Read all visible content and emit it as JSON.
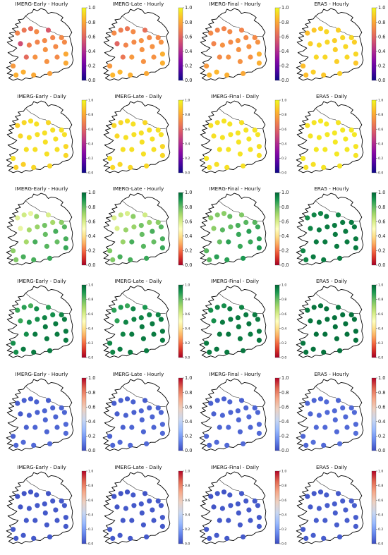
{
  "colormaps": {
    "plasma": [
      "#0d0887",
      "#5302a3",
      "#8b0aa5",
      "#b83289",
      "#db5c68",
      "#f48849",
      "#febd2a",
      "#f0f921"
    ],
    "red_yellow_green": [
      "#a50026",
      "#d73027",
      "#f46d43",
      "#fdae61",
      "#fee08b",
      "#ffffbf",
      "#d9ef8b",
      "#a6d96a",
      "#66bd63",
      "#1a9850",
      "#006837"
    ],
    "coolwarm": [
      "#3b4cc0",
      "#6788ee",
      "#9abbff",
      "#c9d7f0",
      "#edd1c2",
      "#f7a889",
      "#e26952",
      "#b40426"
    ]
  },
  "colorbar_ticks_large": [
    "0.0",
    "0.2",
    "0.4",
    "0.6",
    "0.8",
    "1.0"
  ],
  "colorbar_ticks_small": [
    "0.0",
    "0.2",
    "0.4",
    "0.6",
    "0.8",
    "1.0"
  ],
  "rows": [
    {
      "colormap": "plasma",
      "tick_style": "large",
      "panels": [
        {
          "title": "IMERG-Early - Hourly",
          "values": [
            0.7,
            0.66,
            0.62,
            0.72,
            0.52,
            0.68,
            0.7,
            0.72,
            0.7,
            0.56,
            0.72,
            0.74,
            0.72,
            0.72,
            0.62,
            0.74,
            0.74,
            0.72,
            0.76,
            0.82,
            0.8,
            0.78,
            0.82,
            0.8,
            0.8
          ]
        },
        {
          "title": "IMERG-Late - Hourly",
          "values": [
            0.72,
            0.68,
            0.66,
            0.72,
            0.6,
            0.7,
            0.72,
            0.74,
            0.72,
            0.64,
            0.72,
            0.74,
            0.74,
            0.74,
            0.66,
            0.76,
            0.74,
            0.74,
            0.76,
            0.84,
            0.82,
            0.8,
            0.84,
            0.82,
            0.82
          ]
        },
        {
          "title": "IMERG-Final - Hourly",
          "values": [
            0.72,
            0.7,
            0.7,
            0.72,
            0.7,
            0.74,
            0.72,
            0.74,
            0.72,
            0.7,
            0.72,
            0.74,
            0.74,
            0.74,
            0.72,
            0.74,
            0.74,
            0.74,
            0.76,
            0.84,
            0.82,
            0.8,
            0.84,
            0.82,
            0.82
          ]
        },
        {
          "title": "ERA5 - Hourly",
          "values": [
            0.86,
            0.88,
            0.9,
            0.92,
            0.9,
            0.92,
            0.92,
            0.9,
            0.92,
            0.9,
            0.92,
            0.9,
            0.92,
            0.9,
            0.92,
            0.92,
            0.9,
            0.92,
            0.86,
            0.9,
            0.88,
            0.9,
            0.86,
            0.92,
            0.88
          ]
        }
      ]
    },
    {
      "colormap": "plasma",
      "tick_style": "small",
      "panels": [
        {
          "title": "IMERG-Early - Daily",
          "values": [
            0.9,
            0.92,
            0.94,
            0.94,
            0.92,
            0.94,
            0.94,
            0.94,
            0.94,
            0.92,
            0.94,
            0.94,
            0.94,
            0.94,
            0.94,
            0.94,
            0.94,
            0.94,
            0.94,
            0.9,
            0.92,
            0.92,
            0.9,
            0.92,
            0.92
          ]
        },
        {
          "title": "IMERG-Late - Daily",
          "values": [
            0.92,
            0.92,
            0.94,
            0.94,
            0.92,
            0.94,
            0.94,
            0.94,
            0.94,
            0.92,
            0.94,
            0.94,
            0.94,
            0.94,
            0.94,
            0.94,
            0.94,
            0.94,
            0.94,
            0.92,
            0.92,
            0.92,
            0.92,
            0.92,
            0.92
          ]
        },
        {
          "title": "IMERG-Final - Daily",
          "values": [
            0.94,
            0.94,
            0.95,
            0.95,
            0.94,
            0.95,
            0.95,
            0.95,
            0.95,
            0.94,
            0.95,
            0.95,
            0.95,
            0.95,
            0.95,
            0.95,
            0.95,
            0.95,
            0.95,
            0.94,
            0.94,
            0.94,
            0.94,
            0.94,
            0.94
          ]
        },
        {
          "title": "ERA5 - Daily",
          "values": [
            0.94,
            0.95,
            0.96,
            0.96,
            0.95,
            0.96,
            0.96,
            0.96,
            0.96,
            0.95,
            0.96,
            0.96,
            0.96,
            0.96,
            0.96,
            0.96,
            0.96,
            0.96,
            0.96,
            0.94,
            0.95,
            0.95,
            0.94,
            0.95,
            0.95
          ]
        }
      ]
    },
    {
      "colormap": "red_yellow_green",
      "tick_style": "large",
      "panels": [
        {
          "title": "IMERG-Early - Hourly",
          "values": [
            0.58,
            0.62,
            0.56,
            0.72,
            0.56,
            0.7,
            0.72,
            0.78,
            0.7,
            0.6,
            0.74,
            0.8,
            0.84,
            0.82,
            0.7,
            0.84,
            0.82,
            0.8,
            0.74,
            0.84,
            0.84,
            0.86,
            0.76,
            0.84,
            0.86
          ]
        },
        {
          "title": "IMERG-Late - Hourly",
          "values": [
            0.6,
            0.64,
            0.6,
            0.74,
            0.6,
            0.72,
            0.72,
            0.78,
            0.72,
            0.62,
            0.74,
            0.8,
            0.84,
            0.82,
            0.72,
            0.84,
            0.82,
            0.8,
            0.76,
            0.84,
            0.84,
            0.86,
            0.76,
            0.84,
            0.86
          ]
        },
        {
          "title": "IMERG-Final - Hourly",
          "values": [
            0.74,
            0.76,
            0.74,
            0.8,
            0.74,
            0.82,
            0.8,
            0.84,
            0.82,
            0.76,
            0.82,
            0.86,
            0.88,
            0.86,
            0.8,
            0.88,
            0.86,
            0.86,
            0.82,
            0.88,
            0.88,
            0.9,
            0.82,
            0.88,
            0.9
          ]
        },
        {
          "title": "ERA5 - Hourly",
          "values": [
            0.92,
            0.94,
            0.94,
            0.96,
            0.94,
            0.96,
            0.96,
            0.96,
            0.96,
            0.94,
            0.96,
            0.96,
            0.96,
            0.96,
            0.96,
            0.96,
            0.96,
            0.96,
            0.94,
            0.96,
            0.96,
            0.96,
            0.94,
            0.96,
            0.96
          ]
        }
      ]
    },
    {
      "colormap": "red_yellow_green",
      "tick_style": "small",
      "panels": [
        {
          "title": "IMERG-Early - Daily",
          "values": [
            0.86,
            0.88,
            0.84,
            0.92,
            0.86,
            0.92,
            0.92,
            0.94,
            0.92,
            0.88,
            0.94,
            0.96,
            0.96,
            0.96,
            0.92,
            0.96,
            0.96,
            0.96,
            0.92,
            0.96,
            0.96,
            0.96,
            0.92,
            0.96,
            0.96
          ]
        },
        {
          "title": "IMERG-Late - Daily",
          "values": [
            0.88,
            0.9,
            0.86,
            0.94,
            0.88,
            0.94,
            0.94,
            0.94,
            0.94,
            0.9,
            0.94,
            0.96,
            0.96,
            0.96,
            0.94,
            0.96,
            0.96,
            0.96,
            0.94,
            0.96,
            0.96,
            0.96,
            0.94,
            0.96,
            0.96
          ]
        },
        {
          "title": "IMERG-Final - Daily",
          "values": [
            0.92,
            0.94,
            0.92,
            0.96,
            0.92,
            0.96,
            0.96,
            0.96,
            0.96,
            0.94,
            0.96,
            0.96,
            0.97,
            0.96,
            0.96,
            0.97,
            0.96,
            0.96,
            0.96,
            0.97,
            0.96,
            0.97,
            0.96,
            0.96,
            0.97
          ]
        },
        {
          "title": "ERA5 - Daily",
          "values": [
            0.96,
            0.97,
            0.97,
            0.98,
            0.97,
            0.98,
            0.98,
            0.98,
            0.98,
            0.97,
            0.98,
            0.98,
            0.98,
            0.98,
            0.98,
            0.98,
            0.98,
            0.98,
            0.97,
            0.98,
            0.98,
            0.98,
            0.97,
            0.98,
            0.98
          ]
        }
      ]
    },
    {
      "colormap": "coolwarm",
      "tick_style": "large",
      "panels": [
        {
          "title": "IMERG-Early - Hourly",
          "values": [
            0.04,
            0.05,
            0.04,
            0.05,
            0.03,
            0.05,
            0.05,
            0.06,
            0.05,
            0.04,
            0.06,
            0.06,
            0.06,
            0.06,
            0.05,
            0.06,
            0.06,
            0.06,
            0.05,
            0.07,
            0.07,
            0.07,
            0.06,
            0.07,
            0.07
          ]
        },
        {
          "title": "IMERG-Late - Hourly",
          "values": [
            0.04,
            0.05,
            0.04,
            0.05,
            0.04,
            0.05,
            0.05,
            0.06,
            0.05,
            0.04,
            0.06,
            0.06,
            0.06,
            0.06,
            0.05,
            0.06,
            0.06,
            0.06,
            0.05,
            0.07,
            0.07,
            0.07,
            0.06,
            0.07,
            0.07
          ]
        },
        {
          "title": "IMERG-Final - Hourly",
          "values": [
            0.05,
            0.05,
            0.05,
            0.06,
            0.05,
            0.06,
            0.06,
            0.06,
            0.06,
            0.05,
            0.06,
            0.06,
            0.07,
            0.06,
            0.06,
            0.07,
            0.06,
            0.06,
            0.06,
            0.07,
            0.07,
            0.07,
            0.06,
            0.07,
            0.07
          ]
        },
        {
          "title": "ERA5 - Hourly",
          "values": [
            0.06,
            0.06,
            0.06,
            0.07,
            0.06,
            0.07,
            0.07,
            0.07,
            0.07,
            0.06,
            0.07,
            0.07,
            0.07,
            0.07,
            0.07,
            0.07,
            0.07,
            0.07,
            0.06,
            0.08,
            0.07,
            0.08,
            0.06,
            0.07,
            0.08
          ]
        }
      ]
    },
    {
      "colormap": "coolwarm",
      "tick_style": "small",
      "panels": [
        {
          "title": "IMERG-Early - Daily",
          "values": [
            0.02,
            0.02,
            0.02,
            0.03,
            0.02,
            0.03,
            0.03,
            0.03,
            0.03,
            0.02,
            0.03,
            0.03,
            0.03,
            0.03,
            0.03,
            0.03,
            0.03,
            0.03,
            0.03,
            0.03,
            0.03,
            0.03,
            0.03,
            0.03,
            0.03
          ]
        },
        {
          "title": "IMERG-Late - Daily",
          "values": [
            0.02,
            0.02,
            0.02,
            0.03,
            0.02,
            0.03,
            0.03,
            0.03,
            0.03,
            0.02,
            0.03,
            0.03,
            0.03,
            0.03,
            0.03,
            0.03,
            0.03,
            0.03,
            0.03,
            0.03,
            0.03,
            0.03,
            0.03,
            0.03,
            0.03
          ]
        },
        {
          "title": "IMERG-Final - Daily",
          "values": [
            0.02,
            0.03,
            0.02,
            0.03,
            0.02,
            0.03,
            0.03,
            0.03,
            0.03,
            0.03,
            0.03,
            0.03,
            0.03,
            0.03,
            0.03,
            0.03,
            0.03,
            0.03,
            0.03,
            0.03,
            0.03,
            0.03,
            0.03,
            0.03,
            0.03
          ]
        },
        {
          "title": "ERA5 - Daily",
          "values": [
            0.03,
            0.03,
            0.03,
            0.04,
            0.03,
            0.04,
            0.04,
            0.04,
            0.04,
            0.03,
            0.04,
            0.04,
            0.04,
            0.04,
            0.04,
            0.04,
            0.04,
            0.04,
            0.03,
            0.04,
            0.04,
            0.04,
            0.03,
            0.04,
            0.04
          ]
        }
      ]
    }
  ]
}
